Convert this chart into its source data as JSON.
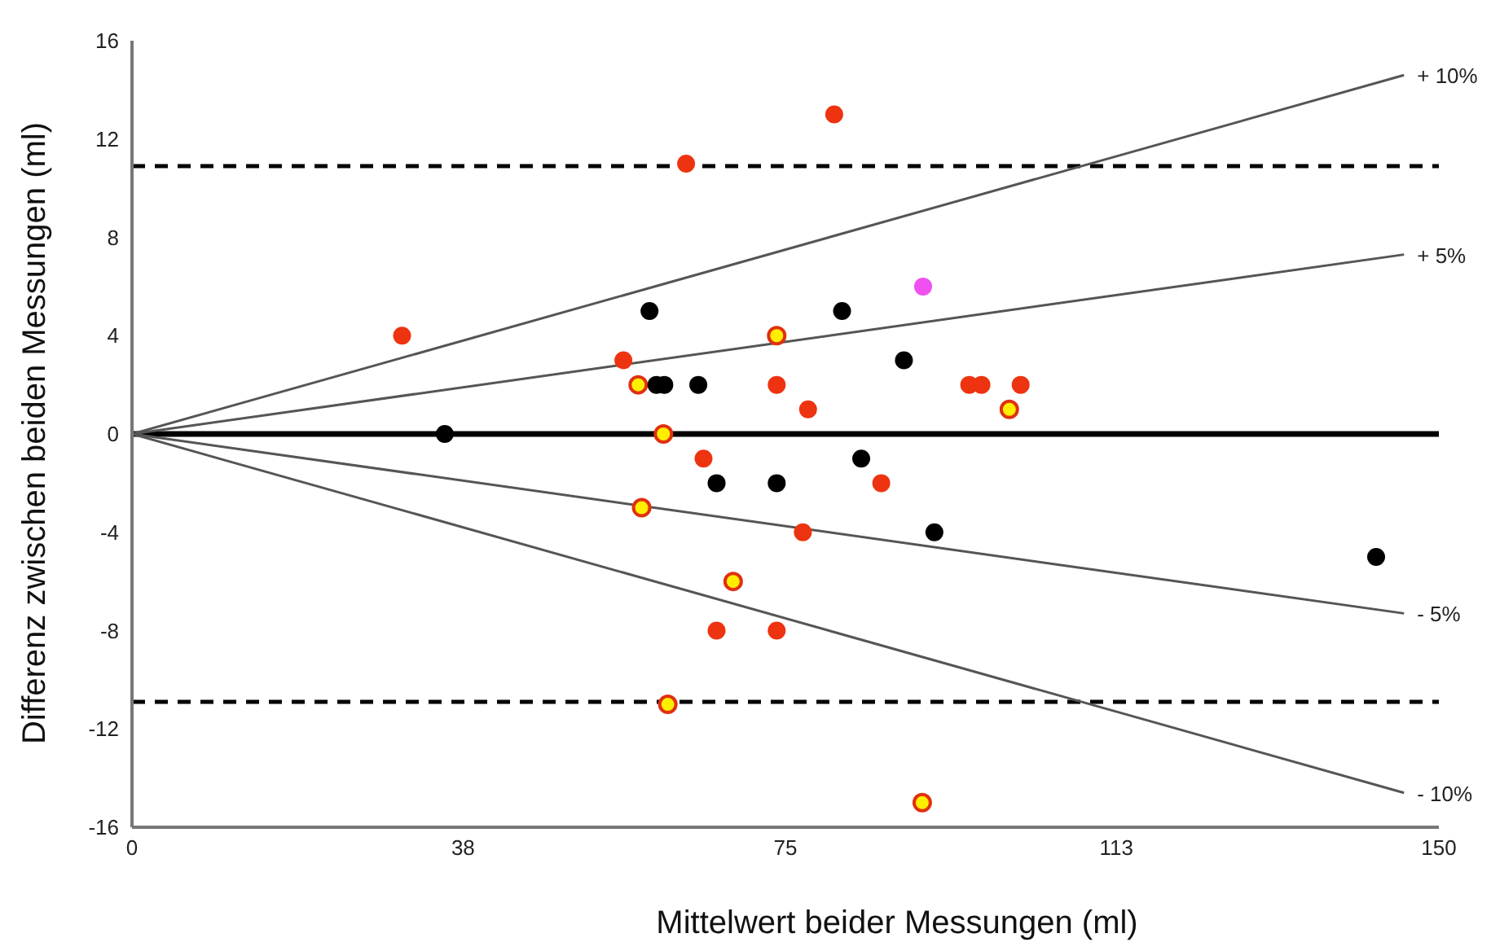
{
  "chart_data": {
    "type": "scatter",
    "xlabel": "Mittelwert beider Messungen (ml)",
    "ylabel": "Differenz zwischen beiden Messungen (ml)",
    "xlim": [
      0,
      150
    ],
    "xticks": [
      0,
      38,
      75,
      113,
      150
    ],
    "ylim": [
      -16,
      16
    ],
    "yticks": [
      -16,
      -12,
      -8,
      -4,
      0,
      4,
      8,
      12,
      16
    ],
    "grid": false,
    "legend": false,
    "marker": "circle",
    "ref_lines": [
      {
        "axis": "y",
        "value": 0,
        "color": "#000000",
        "line_style": "solid"
      },
      {
        "axis": "y",
        "value": 10.9,
        "color": "#000000",
        "line_style": "dashed"
      },
      {
        "axis": "y",
        "value": -10.9,
        "color": "#000000",
        "line_style": "dashed"
      }
    ],
    "series": [
      {
        "type": "line",
        "marker": "none",
        "name": "+ 10%",
        "color": "#555555",
        "x": [
          0,
          146
        ],
        "values": [
          0,
          14.6
        ]
      },
      {
        "type": "line",
        "marker": "none",
        "name": "+ 5%",
        "color": "#555555",
        "x": [
          0,
          146
        ],
        "values": [
          0,
          7.3
        ]
      },
      {
        "type": "line",
        "marker": "none",
        "name": "- 5%",
        "color": "#555555",
        "x": [
          0,
          146
        ],
        "values": [
          0,
          -7.3
        ]
      },
      {
        "type": "line",
        "marker": "none",
        "name": "- 10%",
        "color": "#555555",
        "x": [
          0,
          146
        ],
        "values": [
          0,
          -14.6
        ]
      },
      {
        "color": "#ee3311",
        "x": [
          31,
          63.6,
          80.6,
          56.4,
          74,
          77.6,
          96.1,
          97.5,
          102,
          65.6,
          86,
          77,
          67.1,
          74
        ],
        "values": [
          4,
          11,
          13,
          3,
          2,
          1,
          2,
          2,
          2,
          -1,
          -2,
          -4,
          -8,
          -8
        ]
      },
      {
        "color": "#ffee00",
        "x": [
          58.1,
          74,
          61,
          58.5,
          69,
          61.5,
          90.7,
          100.7
        ],
        "values": [
          2,
          4,
          0,
          -3,
          -6,
          -11,
          -15,
          1
        ]
      },
      {
        "color": "#000000",
        "x": [
          59.4,
          60.2,
          61.1,
          65,
          35.9,
          81.5,
          88.6,
          83.7,
          67.1,
          74,
          92.1,
          142.8
        ],
        "values": [
          5,
          2,
          2,
          2,
          0,
          5,
          3,
          -1,
          -2,
          -2,
          -4,
          -5
        ]
      },
      {
        "color": "#f050f0",
        "x": [
          90.8
        ],
        "values": [
          6
        ]
      }
    ]
  }
}
